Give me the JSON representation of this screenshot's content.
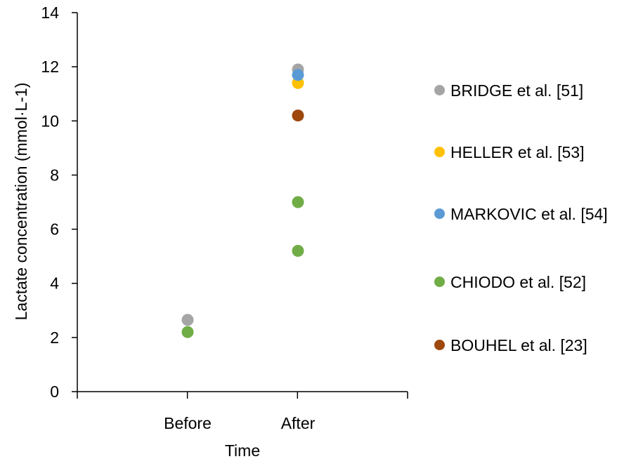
{
  "chart_data": {
    "type": "scatter",
    "title": "",
    "xlabel": "Time",
    "ylabel": "Lactate concentration  (mmol·L-1)",
    "categories": [
      "Before",
      "After"
    ],
    "ylim": [
      0,
      14
    ],
    "yticks": [
      0,
      2,
      4,
      6,
      8,
      10,
      12,
      14
    ],
    "grid": false,
    "legend_position": "right",
    "series": [
      {
        "name": "BRIDGE et al. [51]",
        "color": "#a5a5a5",
        "values": [
          2.65,
          11.9
        ]
      },
      {
        "name": "HELLER et al. [53]",
        "color": "#ffc000",
        "values": [
          null,
          11.4
        ]
      },
      {
        "name": "MARKOVIC et al. [54]",
        "color": "#5b9bd5",
        "values": [
          null,
          11.7
        ]
      },
      {
        "name": "CHIODO et al. [52]",
        "color": "#70ad47",
        "values": [
          2.2,
          7.0
        ]
      },
      {
        "name": "BOUHEL et al. [23]",
        "color": "#9e480e",
        "values": [
          null,
          10.2
        ]
      },
      {
        "name": "",
        "color": "#70ad47",
        "values": [
          null,
          5.2
        ]
      }
    ]
  }
}
